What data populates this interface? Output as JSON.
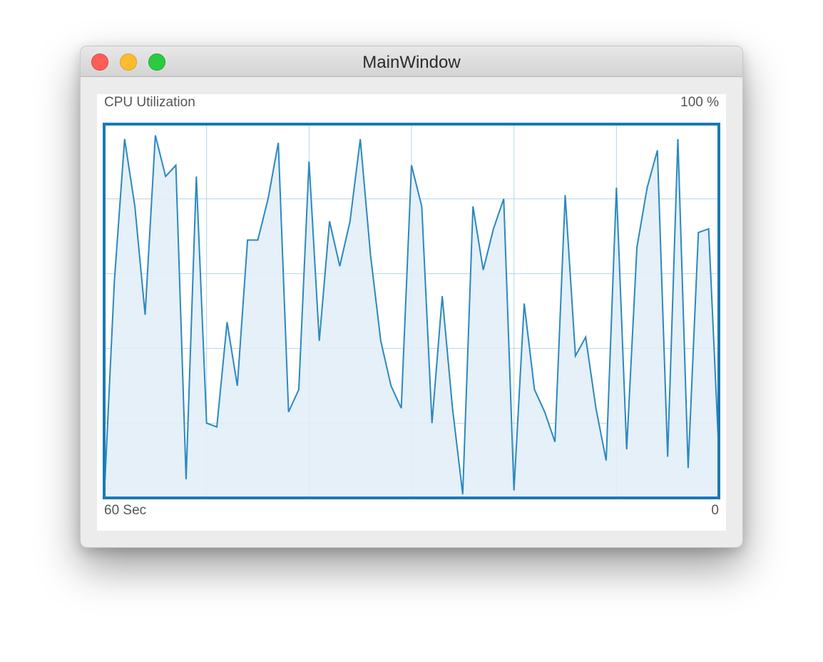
{
  "window": {
    "title": "MainWindow"
  },
  "chart_labels": {
    "top_left": "CPU Utilization",
    "top_right": "100 %",
    "bottom_left": "60 Sec",
    "bottom_right": "0"
  },
  "colors": {
    "line": "#2b88c0",
    "fill": "#e2eef7",
    "border": "#1a79b8",
    "grid": "#b5d4e8"
  },
  "chart_data": {
    "type": "area",
    "title": "CPU Utilization",
    "xlabel": "",
    "ylabel": "",
    "xlim": [
      60,
      0
    ],
    "ylim": [
      0,
      100
    ],
    "grid": true,
    "x_grid_divisions": 6,
    "y_grid_divisions": 5,
    "values": [
      0,
      58,
      96,
      78,
      49,
      97,
      86,
      89,
      5,
      86,
      20,
      19,
      47,
      30,
      69,
      69,
      80,
      95,
      23,
      29,
      90,
      42,
      74,
      62,
      74,
      96,
      65,
      42,
      30,
      24,
      89,
      78,
      20,
      54,
      24,
      1,
      78,
      61,
      72,
      80,
      2,
      52,
      29,
      23,
      15,
      81,
      38,
      43,
      24,
      10,
      83,
      13,
      67,
      83,
      93,
      11,
      96,
      8,
      71,
      72,
      12
    ]
  }
}
